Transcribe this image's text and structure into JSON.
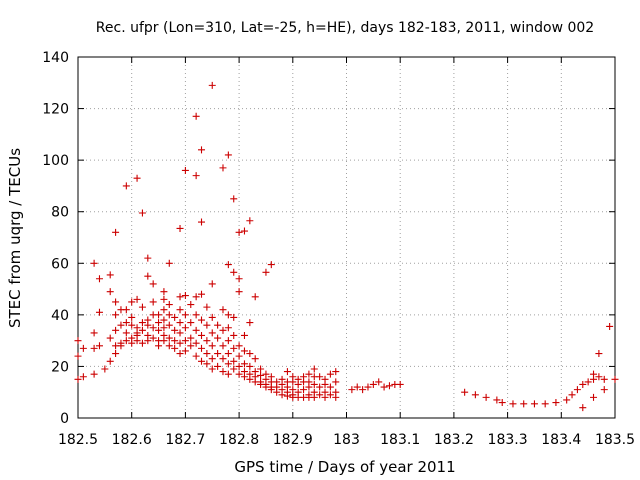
{
  "chart_data": {
    "type": "scatter",
    "title": "Rec. ufpr (Lon=310, Lat=-25, h=HE), days 182-183, 2011, window 002",
    "xlabel": "GPS time / Days of year 2011",
    "ylabel": "STEC from uqrg / TECUs",
    "xlim": [
      182.5,
      183.5
    ],
    "ylim": [
      0,
      140
    ],
    "xticks": [
      "182.5",
      "182.6",
      "182.7",
      "182.8",
      "182.9",
      "183",
      "183.1",
      "183.2",
      "183.3",
      "183.4",
      "183.5"
    ],
    "yticks": [
      "0",
      "20",
      "40",
      "60",
      "80",
      "100",
      "120",
      "140"
    ],
    "grid": true,
    "marker": "+",
    "color": "#cc0000",
    "series": [
      {
        "name": "STEC",
        "points": [
          [
            182.5,
            30.0
          ],
          [
            182.5,
            24.0
          ],
          [
            182.5,
            15.0
          ],
          [
            182.51,
            27.0
          ],
          [
            182.51,
            16.0
          ],
          [
            182.53,
            60.0
          ],
          [
            182.53,
            33.0
          ],
          [
            182.53,
            27.0
          ],
          [
            182.53,
            17.0
          ],
          [
            182.54,
            54.0
          ],
          [
            182.54,
            41.0
          ],
          [
            182.54,
            28.0
          ],
          [
            182.55,
            19.0
          ],
          [
            182.56,
            55.5
          ],
          [
            182.56,
            49.0
          ],
          [
            182.56,
            31.0
          ],
          [
            182.56,
            22.0
          ],
          [
            182.57,
            72.0
          ],
          [
            182.57,
            45.0
          ],
          [
            182.57,
            40.0
          ],
          [
            182.57,
            34.0
          ],
          [
            182.57,
            28.0
          ],
          [
            182.57,
            25.0
          ],
          [
            182.58,
            42.0
          ],
          [
            182.58,
            36.0
          ],
          [
            182.58,
            29.0
          ],
          [
            182.58,
            28.0
          ],
          [
            182.59,
            90.0
          ],
          [
            182.59,
            42.0
          ],
          [
            182.59,
            37.0
          ],
          [
            182.59,
            33.0
          ],
          [
            182.59,
            30.0
          ],
          [
            182.6,
            45.0
          ],
          [
            182.6,
            39.0
          ],
          [
            182.6,
            36.0
          ],
          [
            182.6,
            31.0
          ],
          [
            182.6,
            29.0
          ],
          [
            182.61,
            93.0
          ],
          [
            182.61,
            46.0
          ],
          [
            182.61,
            35.0
          ],
          [
            182.61,
            33.0
          ],
          [
            182.61,
            32.0
          ],
          [
            182.61,
            30.0
          ],
          [
            182.62,
            79.5
          ],
          [
            182.62,
            43.0
          ],
          [
            182.62,
            37.0
          ],
          [
            182.62,
            34.0
          ],
          [
            182.62,
            29.0
          ],
          [
            182.63,
            62.0
          ],
          [
            182.63,
            55.0
          ],
          [
            182.63,
            38.0
          ],
          [
            182.63,
            36.0
          ],
          [
            182.63,
            32.0
          ],
          [
            182.63,
            30.0
          ],
          [
            182.64,
            52.0
          ],
          [
            182.64,
            45.0
          ],
          [
            182.64,
            40.0
          ],
          [
            182.64,
            35.0
          ],
          [
            182.64,
            31.0
          ],
          [
            182.65,
            40.0
          ],
          [
            182.65,
            37.0
          ],
          [
            182.65,
            34.0
          ],
          [
            182.65,
            30.0
          ],
          [
            182.65,
            28.0
          ],
          [
            182.66,
            49.0
          ],
          [
            182.66,
            46.0
          ],
          [
            182.66,
            42.0
          ],
          [
            182.66,
            38.0
          ],
          [
            182.66,
            35.0
          ],
          [
            182.66,
            32.0
          ],
          [
            182.66,
            30.0
          ],
          [
            182.67,
            60.0
          ],
          [
            182.67,
            44.0
          ],
          [
            182.67,
            40.0
          ],
          [
            182.67,
            36.0
          ],
          [
            182.67,
            31.0
          ],
          [
            182.67,
            28.0
          ],
          [
            182.68,
            39.0
          ],
          [
            182.68,
            34.0
          ],
          [
            182.68,
            30.0
          ],
          [
            182.68,
            27.0
          ],
          [
            182.69,
            73.5
          ],
          [
            182.69,
            47.0
          ],
          [
            182.69,
            42.0
          ],
          [
            182.69,
            37.0
          ],
          [
            182.69,
            33.0
          ],
          [
            182.69,
            29.0
          ],
          [
            182.69,
            25.0
          ],
          [
            182.7,
            96.0
          ],
          [
            182.7,
            47.5
          ],
          [
            182.7,
            40.0
          ],
          [
            182.7,
            35.0
          ],
          [
            182.7,
            30.0
          ],
          [
            182.7,
            26.0
          ],
          [
            182.71,
            44.0
          ],
          [
            182.71,
            37.0
          ],
          [
            182.71,
            31.0
          ],
          [
            182.71,
            28.0
          ],
          [
            182.72,
            117.0
          ],
          [
            182.72,
            94.0
          ],
          [
            182.72,
            47.0
          ],
          [
            182.72,
            40.0
          ],
          [
            182.72,
            34.0
          ],
          [
            182.72,
            29.0
          ],
          [
            182.72,
            24.0
          ],
          [
            182.73,
            104.0
          ],
          [
            182.73,
            76.0
          ],
          [
            182.73,
            48.0
          ],
          [
            182.73,
            38.0
          ],
          [
            182.73,
            32.0
          ],
          [
            182.73,
            27.0
          ],
          [
            182.73,
            22.0
          ],
          [
            182.74,
            43.0
          ],
          [
            182.74,
            36.0
          ],
          [
            182.74,
            30.0
          ],
          [
            182.74,
            25.0
          ],
          [
            182.74,
            21.0
          ],
          [
            182.75,
            129.0
          ],
          [
            182.75,
            52.0
          ],
          [
            182.75,
            39.0
          ],
          [
            182.75,
            33.0
          ],
          [
            182.75,
            28.0
          ],
          [
            182.75,
            23.0
          ],
          [
            182.75,
            19.0
          ],
          [
            182.76,
            36.0
          ],
          [
            182.76,
            31.0
          ],
          [
            182.76,
            25.0
          ],
          [
            182.76,
            20.0
          ],
          [
            182.77,
            97.0
          ],
          [
            182.77,
            42.0
          ],
          [
            182.77,
            34.0
          ],
          [
            182.77,
            28.0
          ],
          [
            182.77,
            23.0
          ],
          [
            182.77,
            18.0
          ],
          [
            182.78,
            102.0
          ],
          [
            182.78,
            59.5
          ],
          [
            182.78,
            40.0
          ],
          [
            182.78,
            35.0
          ],
          [
            182.78,
            30.0
          ],
          [
            182.78,
            25.0
          ],
          [
            182.78,
            21.0
          ],
          [
            182.78,
            17.0
          ],
          [
            182.79,
            85.0
          ],
          [
            182.79,
            56.5
          ],
          [
            182.79,
            39.0
          ],
          [
            182.79,
            32.0
          ],
          [
            182.79,
            27.0
          ],
          [
            182.79,
            22.0
          ],
          [
            182.79,
            19.0
          ],
          [
            182.8,
            72.0
          ],
          [
            182.8,
            54.0
          ],
          [
            182.8,
            49.0
          ],
          [
            182.8,
            28.0
          ],
          [
            182.8,
            24.0
          ],
          [
            182.8,
            20.0
          ],
          [
            182.8,
            17.0
          ],
          [
            182.81,
            72.5
          ],
          [
            182.81,
            32.0
          ],
          [
            182.81,
            26.0
          ],
          [
            182.81,
            21.0
          ],
          [
            182.81,
            18.0
          ],
          [
            182.81,
            16.0
          ],
          [
            182.82,
            76.5
          ],
          [
            182.82,
            37.0
          ],
          [
            182.82,
            25.0
          ],
          [
            182.82,
            20.0
          ],
          [
            182.82,
            17.0
          ],
          [
            182.82,
            15.0
          ],
          [
            182.83,
            47.0
          ],
          [
            182.83,
            23.0
          ],
          [
            182.83,
            18.0
          ],
          [
            182.83,
            16.0
          ],
          [
            182.83,
            14.0
          ],
          [
            182.84,
            19.0
          ],
          [
            182.84,
            16.5
          ],
          [
            182.84,
            14.0
          ],
          [
            182.84,
            13.0
          ],
          [
            182.85,
            56.5
          ],
          [
            182.85,
            17.0
          ],
          [
            182.85,
            15.0
          ],
          [
            182.85,
            13.0
          ],
          [
            182.85,
            12.0
          ],
          [
            182.86,
            59.5
          ],
          [
            182.86,
            16.0
          ],
          [
            182.86,
            14.0
          ],
          [
            182.86,
            12.0
          ],
          [
            182.86,
            11.0
          ],
          [
            182.87,
            14.0
          ],
          [
            182.87,
            12.0
          ],
          [
            182.87,
            10.0
          ],
          [
            182.88,
            15.0
          ],
          [
            182.88,
            13.0
          ],
          [
            182.88,
            11.0
          ],
          [
            182.88,
            9.0
          ],
          [
            182.89,
            18.0
          ],
          [
            182.89,
            14.0
          ],
          [
            182.89,
            12.0
          ],
          [
            182.89,
            10.0
          ],
          [
            182.89,
            8.5
          ],
          [
            182.9,
            16.0
          ],
          [
            182.9,
            14.0
          ],
          [
            182.9,
            11.0
          ],
          [
            182.9,
            9.0
          ],
          [
            182.9,
            8.0
          ],
          [
            182.91,
            15.0
          ],
          [
            182.91,
            13.0
          ],
          [
            182.91,
            10.0
          ],
          [
            182.91,
            8.0
          ],
          [
            182.92,
            16.0
          ],
          [
            182.92,
            14.0
          ],
          [
            182.92,
            11.0
          ],
          [
            182.92,
            8.0
          ],
          [
            182.93,
            17.0
          ],
          [
            182.93,
            14.0
          ],
          [
            182.93,
            12.0
          ],
          [
            182.93,
            9.0
          ],
          [
            182.93,
            8.0
          ],
          [
            182.94,
            19.0
          ],
          [
            182.94,
            16.0
          ],
          [
            182.94,
            13.0
          ],
          [
            182.94,
            10.0
          ],
          [
            182.94,
            8.0
          ],
          [
            182.95,
            16.0
          ],
          [
            182.95,
            12.0
          ],
          [
            182.95,
            9.0
          ],
          [
            182.96,
            15.0
          ],
          [
            182.96,
            13.0
          ],
          [
            182.96,
            10.0
          ],
          [
            182.96,
            8.0
          ],
          [
            182.97,
            17.0
          ],
          [
            182.97,
            12.0
          ],
          [
            182.97,
            9.0
          ],
          [
            182.98,
            18.0
          ],
          [
            182.98,
            14.0
          ],
          [
            182.98,
            10.0
          ],
          [
            182.98,
            8.0
          ],
          [
            183.01,
            11.0
          ],
          [
            183.02,
            12.0
          ],
          [
            183.03,
            11.0
          ],
          [
            183.04,
            12.0
          ],
          [
            183.05,
            13.0
          ],
          [
            183.06,
            14.0
          ],
          [
            183.07,
            12.0
          ],
          [
            183.08,
            12.5
          ],
          [
            183.09,
            13.0
          ],
          [
            183.1,
            13.0
          ],
          [
            183.22,
            10.0
          ],
          [
            183.24,
            9.0
          ],
          [
            183.26,
            8.0
          ],
          [
            183.28,
            7.0
          ],
          [
            183.29,
            6.0
          ],
          [
            183.31,
            5.5
          ],
          [
            183.33,
            5.5
          ],
          [
            183.35,
            5.5
          ],
          [
            183.37,
            5.5
          ],
          [
            183.39,
            6.0
          ],
          [
            183.41,
            7.0
          ],
          [
            183.42,
            9.0
          ],
          [
            183.43,
            11.0
          ],
          [
            183.44,
            4.0
          ],
          [
            183.44,
            13.0
          ],
          [
            183.45,
            14.0
          ],
          [
            183.46,
            8.0
          ],
          [
            183.46,
            17.0
          ],
          [
            183.46,
            15.0
          ],
          [
            183.47,
            25.0
          ],
          [
            183.47,
            16.0
          ],
          [
            183.48,
            11.0
          ],
          [
            183.48,
            15.0
          ],
          [
            183.49,
            35.5
          ],
          [
            183.5,
            15.0
          ]
        ]
      }
    ]
  }
}
